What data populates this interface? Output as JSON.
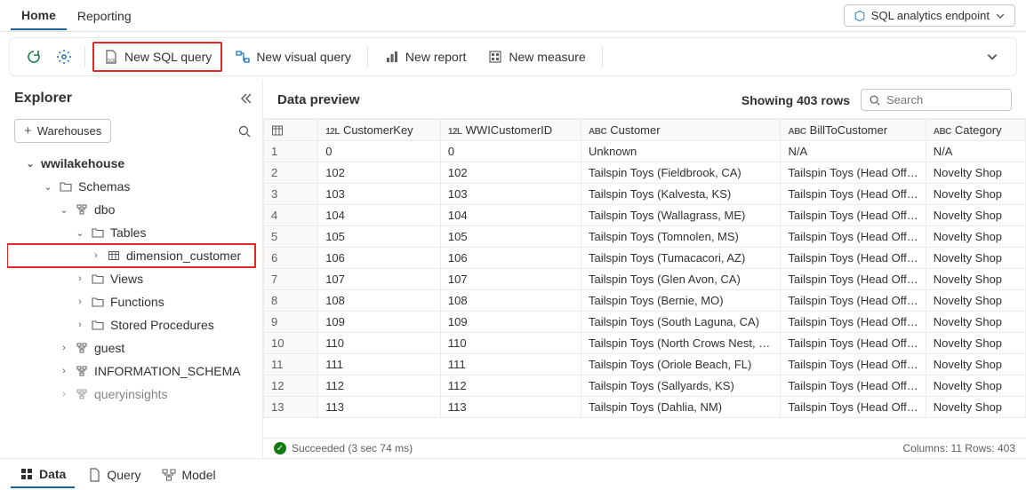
{
  "top_tabs": {
    "home": "Home",
    "reporting": "Reporting"
  },
  "endpoint": {
    "label": "SQL analytics endpoint"
  },
  "toolbar": {
    "new_sql_query": "New SQL query",
    "new_visual_query": "New visual query",
    "new_report": "New report",
    "new_measure": "New measure"
  },
  "explorer": {
    "title": "Explorer",
    "warehouses_btn": "Warehouses",
    "tree": {
      "lakehouse": "wwilakehouse",
      "schemas": "Schemas",
      "dbo": "dbo",
      "tables": "Tables",
      "dimension_customer": "dimension_customer",
      "views": "Views",
      "functions": "Functions",
      "stored_procedures": "Stored Procedures",
      "guest": "guest",
      "information_schema": "INFORMATION_SCHEMA",
      "queryinsights": "queryinsights"
    }
  },
  "preview": {
    "title": "Data preview",
    "showing_rows": "Showing 403 rows",
    "search_placeholder": "Search",
    "columns": [
      {
        "type": "12L",
        "name": "CustomerKey"
      },
      {
        "type": "12L",
        "name": "WWICustomerID"
      },
      {
        "type": "ABC",
        "name": "Customer"
      },
      {
        "type": "ABC",
        "name": "BillToCustomer"
      },
      {
        "type": "ABC",
        "name": "Category"
      }
    ],
    "rows": [
      {
        "n": "1",
        "cells": [
          "0",
          "0",
          "Unknown",
          "N/A",
          "N/A"
        ]
      },
      {
        "n": "2",
        "cells": [
          "102",
          "102",
          "Tailspin Toys (Fieldbrook, CA)",
          "Tailspin Toys (Head Office)",
          "Novelty Shop"
        ]
      },
      {
        "n": "3",
        "cells": [
          "103",
          "103",
          "Tailspin Toys (Kalvesta, KS)",
          "Tailspin Toys (Head Office)",
          "Novelty Shop"
        ]
      },
      {
        "n": "4",
        "cells": [
          "104",
          "104",
          "Tailspin Toys (Wallagrass, ME)",
          "Tailspin Toys (Head Office)",
          "Novelty Shop"
        ]
      },
      {
        "n": "5",
        "cells": [
          "105",
          "105",
          "Tailspin Toys (Tomnolen, MS)",
          "Tailspin Toys (Head Office)",
          "Novelty Shop"
        ]
      },
      {
        "n": "6",
        "cells": [
          "106",
          "106",
          "Tailspin Toys (Tumacacori, AZ)",
          "Tailspin Toys (Head Office)",
          "Novelty Shop"
        ]
      },
      {
        "n": "7",
        "cells": [
          "107",
          "107",
          "Tailspin Toys (Glen Avon, CA)",
          "Tailspin Toys (Head Office)",
          "Novelty Shop"
        ]
      },
      {
        "n": "8",
        "cells": [
          "108",
          "108",
          "Tailspin Toys (Bernie, MO)",
          "Tailspin Toys (Head Office)",
          "Novelty Shop"
        ]
      },
      {
        "n": "9",
        "cells": [
          "109",
          "109",
          "Tailspin Toys (South Laguna, CA)",
          "Tailspin Toys (Head Office)",
          "Novelty Shop"
        ]
      },
      {
        "n": "10",
        "cells": [
          "110",
          "110",
          "Tailspin Toys (North Crows Nest, IN)",
          "Tailspin Toys (Head Office)",
          "Novelty Shop"
        ]
      },
      {
        "n": "11",
        "cells": [
          "111",
          "111",
          "Tailspin Toys (Oriole Beach, FL)",
          "Tailspin Toys (Head Office)",
          "Novelty Shop"
        ]
      },
      {
        "n": "12",
        "cells": [
          "112",
          "112",
          "Tailspin Toys (Sallyards, KS)",
          "Tailspin Toys (Head Office)",
          "Novelty Shop"
        ]
      },
      {
        "n": "13",
        "cells": [
          "113",
          "113",
          "Tailspin Toys (Dahlia, NM)",
          "Tailspin Toys (Head Office)",
          "Novelty Shop"
        ]
      }
    ],
    "status": {
      "text": "Succeeded (3 sec 74 ms)",
      "cols_rows": "Columns: 11 Rows: 403"
    }
  },
  "bottom_tabs": {
    "data": "Data",
    "query": "Query",
    "model": "Model"
  },
  "colors": {
    "border": "#edebe9",
    "accent": "#1d6295",
    "highlight": "#e22828",
    "success": "#107c10",
    "muted": "#605e5c"
  }
}
